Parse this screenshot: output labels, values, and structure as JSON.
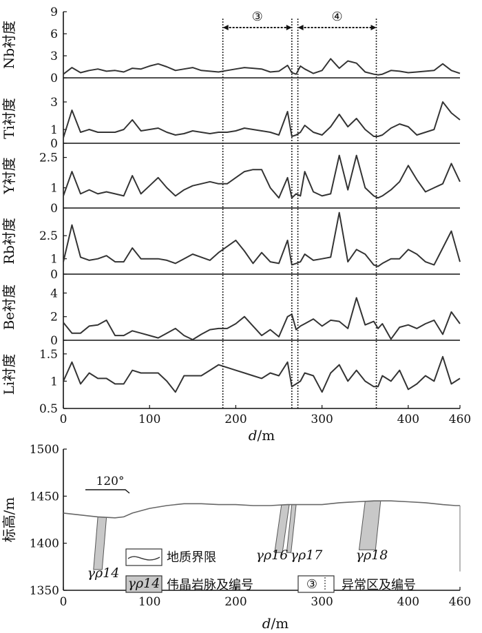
{
  "chart_data": [
    {
      "type": "line",
      "x_label": "d/m",
      "x_ticks": [
        "0",
        "100",
        "200",
        "300",
        "400",
        "460"
      ],
      "x": [
        0,
        10,
        20,
        30,
        40,
        50,
        60,
        70,
        80,
        90,
        100,
        110,
        120,
        130,
        140,
        150,
        160,
        170,
        180,
        190,
        200,
        210,
        220,
        230,
        240,
        250,
        260,
        265,
        270,
        275,
        280,
        290,
        300,
        310,
        320,
        330,
        340,
        350,
        360,
        365,
        370,
        380,
        390,
        400,
        410,
        420,
        430,
        440,
        450,
        460
      ],
      "panels": [
        {
          "ylabel": "Nb衬度",
          "yticks": [
            "0",
            "3",
            "6",
            "9"
          ],
          "ylim": [
            0,
            9
          ],
          "values": [
            0.5,
            1.4,
            0.7,
            1.0,
            1.2,
            0.9,
            1.0,
            0.8,
            1.3,
            1.2,
            1.6,
            1.9,
            1.5,
            1.0,
            1.2,
            1.4,
            1.0,
            0.9,
            0.8,
            1.0,
            1.2,
            1.4,
            1.3,
            1.2,
            0.8,
            0.9,
            1.7,
            0.7,
            0.5,
            1.6,
            1.2,
            0.6,
            1.0,
            2.6,
            1.3,
            2.3,
            2.0,
            0.8,
            0.5,
            0.4,
            0.5,
            1.0,
            0.9,
            0.7,
            0.8,
            0.9,
            1.0,
            1.9,
            1.0,
            0.6
          ]
        },
        {
          "ylabel": "Ti衬度",
          "yticks": [
            "0",
            "1",
            "3"
          ],
          "ylim": [
            0,
            3.6
          ],
          "values": [
            0.4,
            2.4,
            0.8,
            1.0,
            0.8,
            0.8,
            0.8,
            1.0,
            1.7,
            0.9,
            1.0,
            1.1,
            0.8,
            0.6,
            0.7,
            0.9,
            0.8,
            0.7,
            0.8,
            0.8,
            0.9,
            1.1,
            1.0,
            0.9,
            0.8,
            0.6,
            2.3,
            0.5,
            0.6,
            0.8,
            1.3,
            0.8,
            0.6,
            1.2,
            2.1,
            1.2,
            1.8,
            1.0,
            0.5,
            0.5,
            0.6,
            1.1,
            1.4,
            1.2,
            0.6,
            0.8,
            1.0,
            3.0,
            2.2,
            1.7
          ]
        },
        {
          "ylabel": "Y衬度",
          "yticks": [
            "0",
            "1",
            "2.5"
          ],
          "ylim": [
            0,
            3.2
          ],
          "values": [
            0.6,
            1.8,
            0.7,
            0.9,
            0.7,
            0.8,
            0.7,
            0.6,
            1.6,
            0.7,
            1.1,
            1.5,
            1.0,
            0.6,
            0.9,
            1.1,
            1.2,
            1.3,
            1.2,
            1.2,
            1.5,
            1.8,
            1.9,
            1.9,
            1.0,
            0.5,
            1.5,
            0.5,
            0.7,
            0.6,
            1.8,
            0.8,
            0.6,
            0.7,
            2.6,
            0.9,
            2.6,
            1.0,
            0.6,
            0.5,
            0.6,
            0.9,
            1.3,
            2.1,
            1.4,
            0.8,
            1.0,
            1.2,
            2.2,
            1.3
          ]
        },
        {
          "ylabel": "Rb衬度",
          "yticks": [
            "0",
            "1",
            "2.5"
          ],
          "ylim": [
            0,
            4.3
          ],
          "values": [
            0.8,
            3.2,
            1.1,
            0.9,
            1.0,
            1.2,
            0.8,
            0.8,
            1.7,
            1.0,
            1.0,
            1.0,
            0.9,
            0.7,
            1.0,
            1.3,
            1.1,
            0.9,
            1.4,
            1.8,
            2.2,
            1.5,
            0.7,
            1.4,
            0.8,
            0.7,
            2.2,
            0.6,
            0.7,
            0.8,
            1.3,
            0.9,
            1.0,
            1.1,
            4.0,
            0.8,
            1.6,
            1.3,
            0.6,
            0.5,
            0.7,
            1.0,
            1.0,
            1.6,
            1.3,
            0.8,
            0.6,
            1.7,
            2.8,
            0.8
          ]
        },
        {
          "ylabel": "Be衬度",
          "yticks": [
            "0",
            "2",
            "4"
          ],
          "ylim": [
            0,
            5.6
          ],
          "values": [
            1.5,
            0.6,
            0.6,
            1.2,
            1.3,
            1.7,
            0.4,
            0.4,
            0.8,
            0.6,
            0.4,
            0.2,
            0.6,
            1.0,
            0.4,
            0.05,
            0.5,
            0.9,
            1.0,
            1.0,
            1.4,
            2.0,
            1.2,
            0.4,
            0.9,
            0.3,
            2.0,
            2.2,
            0.9,
            1.2,
            1.4,
            1.8,
            1.2,
            1.7,
            1.6,
            1.0,
            3.6,
            1.3,
            1.6,
            1.0,
            1.4,
            0.1,
            1.1,
            1.3,
            1.0,
            1.4,
            1.7,
            0.5,
            2.4,
            1.4
          ]
        },
        {
          "ylabel": "Li衬度",
          "yticks": [
            "0.5",
            "1",
            "1.5"
          ],
          "ylim": [
            0.5,
            1.75
          ],
          "values": [
            1.0,
            1.35,
            0.95,
            1.15,
            1.05,
            1.05,
            0.95,
            0.95,
            1.2,
            1.15,
            1.15,
            1.15,
            1.0,
            0.8,
            1.1,
            1.1,
            1.1,
            1.2,
            1.3,
            1.25,
            1.2,
            1.15,
            1.1,
            1.05,
            1.15,
            1.1,
            1.35,
            0.9,
            0.95,
            1.0,
            1.15,
            1.1,
            0.8,
            1.15,
            1.3,
            1.0,
            1.2,
            1.0,
            0.9,
            0.9,
            1.1,
            1.0,
            1.2,
            0.85,
            0.95,
            1.1,
            1.0,
            1.45,
            0.95,
            1.05
          ]
        }
      ],
      "zones": [
        {
          "label": "③",
          "x_from": 185,
          "x_to": 265
        },
        {
          "label": "④",
          "x_from": 272,
          "x_to": 363
        }
      ]
    },
    {
      "type": "line",
      "title": "",
      "x_label": "d/m",
      "y_label": "标高/m",
      "x_ticks": [
        "0",
        "100",
        "200",
        "300",
        "400",
        "460"
      ],
      "y_ticks": [
        "1350",
        "1400",
        "1450",
        "1500"
      ],
      "xlim": [
        0,
        460
      ],
      "ylim": [
        1350,
        1500
      ],
      "direction_label": "120°",
      "surface_x": [
        0,
        20,
        40,
        60,
        70,
        80,
        100,
        120,
        140,
        160,
        180,
        200,
        220,
        240,
        260,
        280,
        300,
        320,
        340,
        360,
        380,
        400,
        420,
        440,
        455,
        460
      ],
      "surface_y": [
        1432,
        1430,
        1428,
        1427,
        1428,
        1432,
        1437,
        1440,
        1442,
        1442,
        1441,
        1441,
        1440,
        1440,
        1441,
        1441,
        1441,
        1443,
        1444,
        1445,
        1445,
        1444,
        1443,
        1441,
        1440,
        1440
      ],
      "dykes": [
        {
          "label": "γρ14",
          "top": [
            40,
            50
          ],
          "bottom": [
            35,
            45
          ],
          "bottom_y": 1372
        },
        {
          "label": "γρ16",
          "top": [
            253,
            262
          ],
          "bottom": [
            245,
            254
          ],
          "bottom_y": 1390
        },
        {
          "label": "γρ17",
          "top": [
            265,
            270
          ],
          "bottom": [
            259,
            264
          ],
          "bottom_y": 1390
        },
        {
          "label": "γρ18",
          "top": [
            350,
            368
          ],
          "bottom": [
            343,
            362
          ],
          "bottom_y": 1393
        }
      ],
      "legend": [
        {
          "key": "boundary",
          "label": "地质界限"
        },
        {
          "key": "dyke",
          "sample": "γρ14",
          "label": "伟晶岩脉及编号"
        },
        {
          "key": "zone",
          "sample": "③",
          "label": "异常区及编号"
        }
      ]
    }
  ],
  "style": {
    "line_color": "#333333",
    "dyke_fill": "#c8c8c8",
    "zone_line": "#222222"
  }
}
